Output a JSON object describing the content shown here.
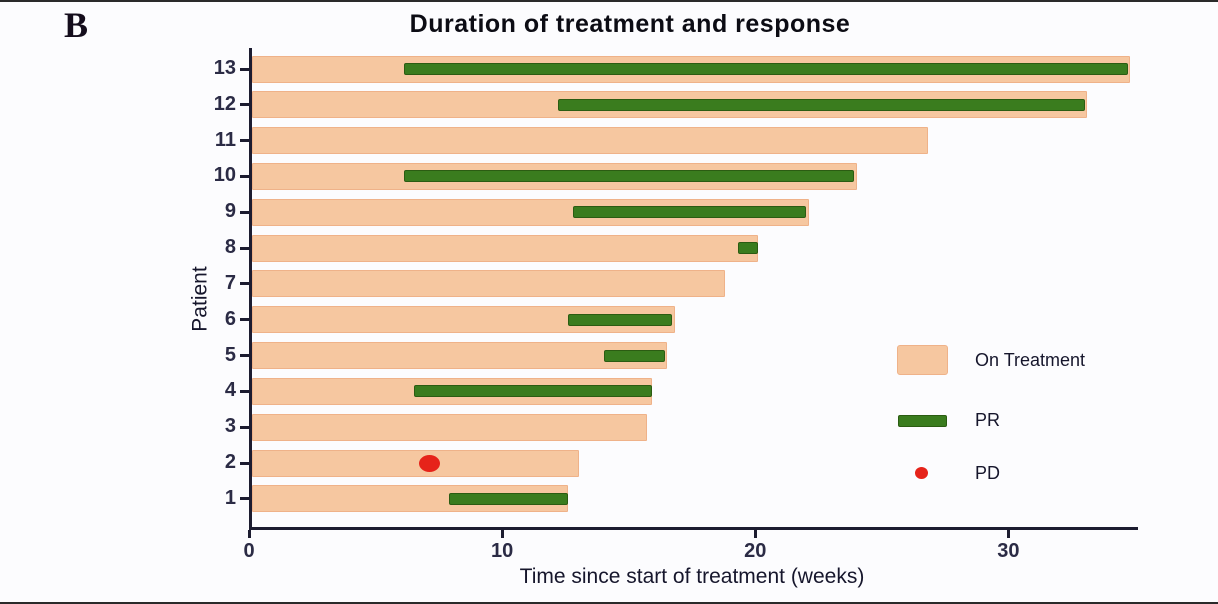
{
  "panel_label": "B",
  "title": "Duration of treatment and response",
  "x_axis_title": "Time since start of treatment (weeks)",
  "y_axis_title": "Patient",
  "legend": {
    "items": [
      {
        "key": "on-treatment",
        "label": "On Treatment",
        "swatch": "bar",
        "color": "#f6c7a0"
      },
      {
        "key": "pr",
        "label": "PR",
        "swatch": "line",
        "color": "#3a7c1e"
      },
      {
        "key": "pd",
        "label": "PD",
        "swatch": "dot",
        "color": "#e6231a"
      }
    ]
  },
  "chart_data": {
    "type": "bar",
    "subtype": "swimmer-plot",
    "orientation": "horizontal",
    "title": "Duration of treatment and response",
    "xlabel": "Time since start of treatment (weeks)",
    "ylabel": "Patient",
    "xlim": [
      0,
      35
    ],
    "xticks": [
      0,
      10,
      20,
      30
    ],
    "grid": false,
    "legend_position": "right-center",
    "series_meaning": {
      "on_treatment_weeks": "length of peach bar (treatment duration, weeks)",
      "pr": "[start, end] of green partial-response segment (weeks)",
      "pd": "week of red progressive-disease marker"
    },
    "patients": [
      {
        "patient": 13,
        "on_treatment_weeks": 34.7,
        "pr": [
          6.0,
          34.6
        ],
        "pd": null
      },
      {
        "patient": 12,
        "on_treatment_weeks": 33.0,
        "pr": [
          12.1,
          32.9
        ],
        "pd": null
      },
      {
        "patient": 11,
        "on_treatment_weeks": 26.7,
        "pr": null,
        "pd": null
      },
      {
        "patient": 10,
        "on_treatment_weeks": 23.9,
        "pr": [
          6.0,
          23.8
        ],
        "pd": null
      },
      {
        "patient": 9,
        "on_treatment_weeks": 22.0,
        "pr": [
          12.7,
          21.9
        ],
        "pd": null
      },
      {
        "patient": 8,
        "on_treatment_weeks": 20.0,
        "pr": [
          19.2,
          20.0
        ],
        "pd": null
      },
      {
        "patient": 7,
        "on_treatment_weeks": 18.7,
        "pr": null,
        "pd": null
      },
      {
        "patient": 6,
        "on_treatment_weeks": 16.7,
        "pr": [
          12.5,
          16.6
        ],
        "pd": null
      },
      {
        "patient": 5,
        "on_treatment_weeks": 16.4,
        "pr": [
          13.9,
          16.3
        ],
        "pd": null
      },
      {
        "patient": 4,
        "on_treatment_weeks": 15.8,
        "pr": [
          6.4,
          15.8
        ],
        "pd": null
      },
      {
        "patient": 3,
        "on_treatment_weeks": 15.6,
        "pr": null,
        "pd": null
      },
      {
        "patient": 2,
        "on_treatment_weeks": 12.9,
        "pr": null,
        "pd": 7.0
      },
      {
        "patient": 1,
        "on_treatment_weeks": 12.5,
        "pr": [
          7.8,
          12.5
        ],
        "pd": null
      }
    ]
  },
  "colors": {
    "background": "#fcfcfe",
    "on_treatment": "#f6c7a0",
    "on_treatment_border": "#efb289",
    "pr_green": "#3a7c1e",
    "pd_red": "#e6231a",
    "axis": "#1c1c30",
    "tick_text": "#2b2b45"
  }
}
